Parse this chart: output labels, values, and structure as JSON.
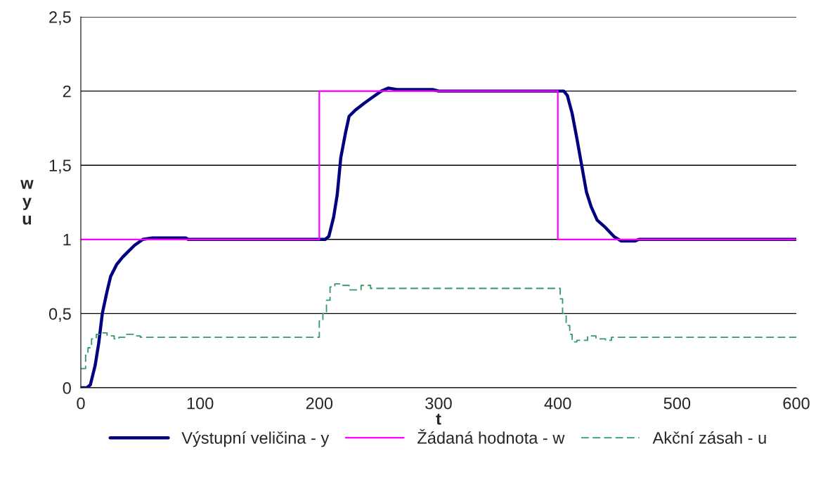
{
  "chart_data": {
    "type": "line",
    "xlabel": "t",
    "ylabel": "w\ny\nu",
    "xlim": [
      0,
      600
    ],
    "ylim": [
      0,
      2.5
    ],
    "xticks": [
      0,
      100,
      200,
      300,
      400,
      500,
      600
    ],
    "yticks": [
      {
        "value": 0,
        "label": "0"
      },
      {
        "value": 0.5,
        "label": "0,5"
      },
      {
        "value": 1,
        "label": "1"
      },
      {
        "value": 1.5,
        "label": "1,5"
      },
      {
        "value": 2,
        "label": "2"
      },
      {
        "value": 2.5,
        "label": "2,5"
      }
    ],
    "grid": "y",
    "legend": "bottom",
    "series": [
      {
        "name": "Výstupní veličina - y",
        "color": "#000080",
        "line_style": "solid",
        "x": [
          0,
          5,
          8,
          12,
          15,
          18,
          22,
          25,
          30,
          35,
          40,
          45,
          52,
          60,
          88,
          90,
          200,
          205,
          208,
          212,
          215,
          218,
          222,
          225,
          230,
          238,
          245,
          252,
          258,
          265,
          295,
          300,
          400,
          405,
          408,
          412,
          416,
          420,
          424,
          428,
          433,
          440,
          447,
          453,
          465,
          468,
          600
        ],
        "values": [
          0,
          0,
          0.02,
          0.15,
          0.3,
          0.5,
          0.65,
          0.75,
          0.83,
          0.88,
          0.92,
          0.96,
          1.0,
          1.01,
          1.01,
          1.0,
          1.0,
          1.0,
          1.02,
          1.15,
          1.3,
          1.55,
          1.72,
          1.83,
          1.87,
          1.92,
          1.96,
          2.0,
          2.02,
          2.01,
          2.01,
          2.0,
          2.0,
          2.0,
          1.97,
          1.85,
          1.68,
          1.5,
          1.32,
          1.22,
          1.13,
          1.08,
          1.02,
          0.99,
          0.99,
          1.0,
          1.0
        ]
      },
      {
        "name": "Žádaná hodnota - w",
        "color": "#ff00ff",
        "line_style": "solid",
        "x": [
          0,
          200,
          200,
          400,
          400,
          600
        ],
        "values": [
          1,
          1,
          2,
          2,
          1,
          1
        ]
      },
      {
        "name": "Akční zásah - u",
        "type": "step",
        "color": "#339966",
        "line_style": "dashed",
        "x": [
          0,
          4,
          6,
          9,
          13,
          18,
          22,
          28,
          32,
          38,
          45,
          50,
          198,
          200,
          203,
          206,
          209,
          213,
          218,
          225,
          235,
          243,
          400,
          402,
          404,
          407,
          410,
          412,
          416,
          425,
          432,
          440,
          445,
          600
        ],
        "values": [
          0.13,
          0.22,
          0.27,
          0.33,
          0.36,
          0.37,
          0.35,
          0.33,
          0.34,
          0.36,
          0.35,
          0.34,
          0.34,
          0.45,
          0.5,
          0.59,
          0.68,
          0.7,
          0.69,
          0.66,
          0.69,
          0.67,
          0.67,
          0.6,
          0.5,
          0.42,
          0.36,
          0.31,
          0.32,
          0.35,
          0.33,
          0.32,
          0.34,
          0.34
        ]
      }
    ]
  }
}
